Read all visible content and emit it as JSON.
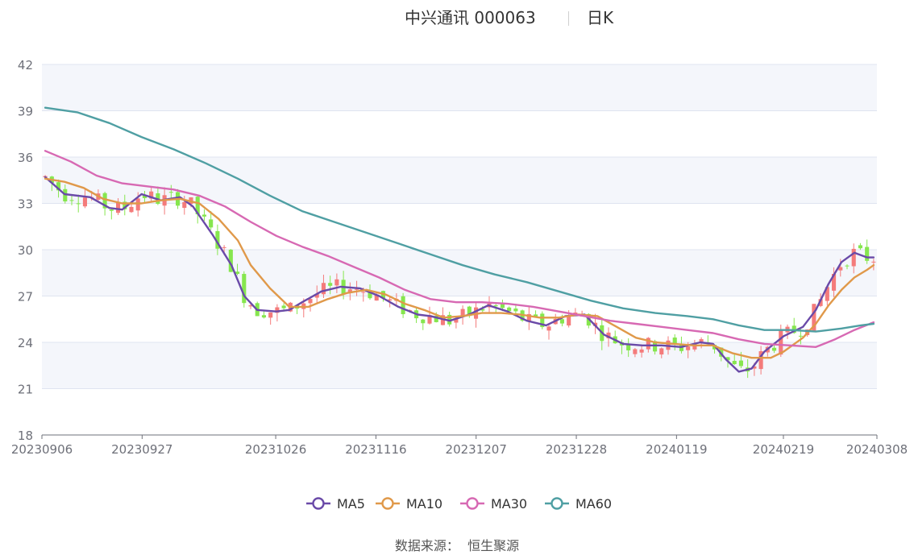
{
  "header": {
    "title": "中兴通讯 000063",
    "subtitle": "日K"
  },
  "source": "数据来源：  恒生聚源",
  "colors": {
    "up": "#f47b7b",
    "down": "#86e64e",
    "ma5": "#6a4aa8",
    "ma10": "#e0994a",
    "ma30": "#d769b3",
    "ma60": "#4f9fa3",
    "band": "#f4f6fb",
    "grid": "#dfe4f0",
    "axis": "#6e7079"
  },
  "chart_data": {
    "type": "candlestick",
    "title": "中兴通讯 000063",
    "subtitle": "日K",
    "x_labels": [
      "20230906",
      "20230927",
      "20231026",
      "20231116",
      "20231207",
      "20231228",
      "20240119",
      "20240219",
      "20240308"
    ],
    "x_label_index": [
      0,
      15,
      35,
      50,
      65,
      80,
      95,
      111,
      125
    ],
    "y_ticks": [
      18,
      21,
      24,
      27,
      30,
      33,
      36,
      39,
      42
    ],
    "ylim": [
      18,
      42
    ],
    "n": 126,
    "grid": true,
    "legend_position": "bottom",
    "series": [
      {
        "name": "MA5",
        "color": "#6a4aa8",
        "points": [
          [
            0,
            34.7
          ],
          [
            3,
            33.6
          ],
          [
            7,
            33.4
          ],
          [
            10,
            32.7
          ],
          [
            12,
            32.6
          ],
          [
            15,
            33.6
          ],
          [
            18,
            33.2
          ],
          [
            21,
            33.4
          ],
          [
            23,
            32.8
          ],
          [
            26,
            31.0
          ],
          [
            29,
            29.0
          ],
          [
            31,
            27.0
          ],
          [
            33,
            26.1
          ],
          [
            36,
            26.0
          ],
          [
            38,
            26.1
          ],
          [
            40,
            26.6
          ],
          [
            43,
            27.3
          ],
          [
            46,
            27.6
          ],
          [
            49,
            27.5
          ],
          [
            52,
            27.0
          ],
          [
            55,
            26.3
          ],
          [
            58,
            25.8
          ],
          [
            60,
            25.7
          ],
          [
            63,
            25.4
          ],
          [
            66,
            25.8
          ],
          [
            69,
            26.4
          ],
          [
            72,
            26.0
          ],
          [
            75,
            25.4
          ],
          [
            78,
            25.1
          ],
          [
            81,
            25.7
          ],
          [
            84,
            25.8
          ],
          [
            87,
            24.5
          ],
          [
            90,
            23.9
          ],
          [
            93,
            23.8
          ],
          [
            96,
            23.8
          ],
          [
            99,
            23.7
          ],
          [
            102,
            24.0
          ],
          [
            104,
            23.9
          ],
          [
            106,
            22.9
          ],
          [
            108,
            22.1
          ],
          [
            110,
            22.3
          ],
          [
            112,
            23.4
          ],
          [
            115,
            24.4
          ],
          [
            118,
            25.0
          ],
          [
            120,
            26.1
          ],
          [
            122,
            27.8
          ],
          [
            124,
            29.2
          ],
          [
            126,
            29.8
          ],
          [
            128,
            29.5
          ],
          [
            129,
            29.5
          ]
        ]
      },
      {
        "name": "MA10",
        "color": "#e0994a",
        "points": [
          [
            0,
            34.6
          ],
          [
            3,
            34.4
          ],
          [
            6,
            34.0
          ],
          [
            9,
            33.3
          ],
          [
            12,
            33.0
          ],
          [
            15,
            33.0
          ],
          [
            18,
            33.2
          ],
          [
            21,
            33.3
          ],
          [
            24,
            33.0
          ],
          [
            27,
            32.0
          ],
          [
            30,
            30.6
          ],
          [
            32,
            29.0
          ],
          [
            35,
            27.5
          ],
          [
            38,
            26.3
          ],
          [
            41,
            26.3
          ],
          [
            44,
            26.8
          ],
          [
            47,
            27.2
          ],
          [
            50,
            27.4
          ],
          [
            53,
            27.1
          ],
          [
            56,
            26.5
          ],
          [
            59,
            26.1
          ],
          [
            62,
            25.6
          ],
          [
            65,
            25.7
          ],
          [
            68,
            25.9
          ],
          [
            71,
            25.9
          ],
          [
            74,
            25.8
          ],
          [
            77,
            25.6
          ],
          [
            80,
            25.6
          ],
          [
            83,
            25.8
          ],
          [
            86,
            25.7
          ],
          [
            89,
            25.0
          ],
          [
            92,
            24.3
          ],
          [
            95,
            24.0
          ],
          [
            98,
            23.9
          ],
          [
            101,
            23.8
          ],
          [
            104,
            23.8
          ],
          [
            107,
            23.3
          ],
          [
            110,
            23.0
          ],
          [
            113,
            23.0
          ],
          [
            115,
            23.4
          ],
          [
            118,
            24.3
          ],
          [
            120,
            25.2
          ],
          [
            122,
            26.4
          ],
          [
            124,
            27.4
          ],
          [
            126,
            28.2
          ],
          [
            128,
            28.7
          ],
          [
            129,
            29.0
          ]
        ]
      },
      {
        "name": "MA30",
        "color": "#d769b3",
        "points": [
          [
            0,
            36.4
          ],
          [
            4,
            35.7
          ],
          [
            8,
            34.8
          ],
          [
            12,
            34.3
          ],
          [
            16,
            34.1
          ],
          [
            20,
            33.9
          ],
          [
            24,
            33.5
          ],
          [
            28,
            32.8
          ],
          [
            32,
            31.8
          ],
          [
            36,
            30.9
          ],
          [
            40,
            30.2
          ],
          [
            44,
            29.6
          ],
          [
            48,
            28.9
          ],
          [
            52,
            28.2
          ],
          [
            56,
            27.4
          ],
          [
            60,
            26.8
          ],
          [
            64,
            26.6
          ],
          [
            68,
            26.6
          ],
          [
            72,
            26.5
          ],
          [
            76,
            26.3
          ],
          [
            80,
            26.0
          ],
          [
            84,
            25.7
          ],
          [
            88,
            25.4
          ],
          [
            92,
            25.2
          ],
          [
            96,
            25.0
          ],
          [
            100,
            24.8
          ],
          [
            104,
            24.6
          ],
          [
            108,
            24.2
          ],
          [
            112,
            23.9
          ],
          [
            116,
            23.8
          ],
          [
            120,
            23.7
          ],
          [
            123,
            24.2
          ],
          [
            126,
            24.8
          ],
          [
            129,
            25.3
          ]
        ]
      },
      {
        "name": "MA60",
        "color": "#4f9fa3",
        "points": [
          [
            0,
            39.2
          ],
          [
            5,
            38.9
          ],
          [
            10,
            38.2
          ],
          [
            15,
            37.3
          ],
          [
            20,
            36.5
          ],
          [
            25,
            35.6
          ],
          [
            30,
            34.6
          ],
          [
            35,
            33.5
          ],
          [
            40,
            32.5
          ],
          [
            45,
            31.8
          ],
          [
            50,
            31.1
          ],
          [
            55,
            30.4
          ],
          [
            60,
            29.7
          ],
          [
            65,
            29.0
          ],
          [
            70,
            28.4
          ],
          [
            75,
            27.9
          ],
          [
            80,
            27.3
          ],
          [
            85,
            26.7
          ],
          [
            90,
            26.2
          ],
          [
            95,
            25.9
          ],
          [
            100,
            25.7
          ],
          [
            104,
            25.5
          ],
          [
            108,
            25.1
          ],
          [
            112,
            24.8
          ],
          [
            116,
            24.8
          ],
          [
            120,
            24.7
          ],
          [
            124,
            24.9
          ],
          [
            127,
            25.1
          ],
          [
            129,
            25.2
          ]
        ]
      }
    ]
  }
}
